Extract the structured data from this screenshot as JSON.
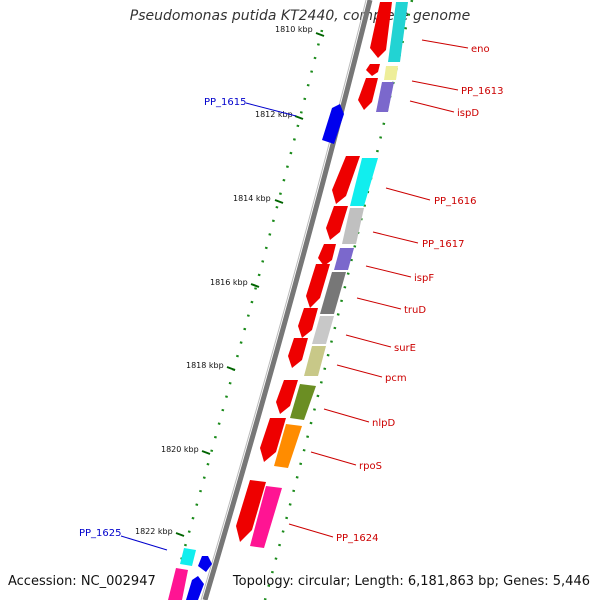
{
  "map": {
    "title": "Pseudomonas putida KT2440, complete genome",
    "accession": "Accession: NC_002947",
    "summary": "Topology: circular; Length: 6,181,863 bp; Genes: 5,446",
    "tick_labels": [
      "1810 kbp",
      "1812 kbp",
      "1814 kbp",
      "1816 kbp",
      "1818 kbp",
      "1820 kbp",
      "1822 kbp"
    ],
    "genes_right": [
      "eno",
      "PP_1613",
      "ispD",
      "PP_1616",
      "PP_1617",
      "ispF",
      "truD",
      "surE",
      "pcm",
      "nlpD",
      "rpoS",
      "PP_1624"
    ],
    "genes_left": [
      "PP_1615",
      "PP_1625"
    ],
    "colors": {
      "backbone": "#808080",
      "forward_cds": "#0000ee",
      "reverse_cds": "#ee0000",
      "label_red": "#cc0000",
      "label_blue": "#0000cc",
      "ticks": "#006400"
    }
  }
}
